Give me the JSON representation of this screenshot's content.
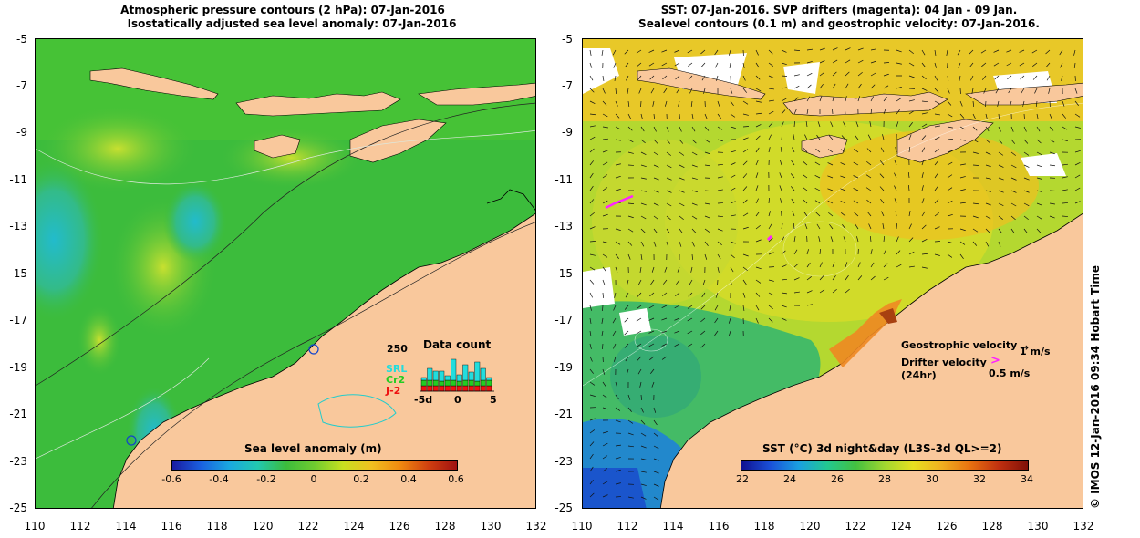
{
  "left_panel": {
    "title_line1": "Atmospheric pressure contours (2 hPa): 07-Jan-2016",
    "title_line2": "Isostatically adjusted sea level anomaly: 07-Jan-2016",
    "y_ticks": [
      "-5",
      "-7",
      "-9",
      "-11",
      "-13",
      "-15",
      "-17",
      "-19",
      "-21",
      "-23",
      "-25"
    ],
    "x_ticks": [
      "110",
      "112",
      "114",
      "116",
      "118",
      "120",
      "122",
      "124",
      "126",
      "128",
      "130",
      "132"
    ],
    "colorbar": {
      "title": "Sea level anomaly (m)",
      "ticks": [
        "-0.6",
        "-0.4",
        "-0.2",
        "0",
        "0.2",
        "0.4",
        "0.6"
      ]
    },
    "inset": {
      "title": "Data count",
      "ymax_label": "250",
      "legend": [
        {
          "label": "SRL",
          "color": "#22dddd"
        },
        {
          "label": "Cr2",
          "color": "#22cc22"
        },
        {
          "label": "J-2",
          "color": "#ee1111"
        }
      ],
      "x_labels": [
        "-5d",
        "0",
        "5"
      ]
    }
  },
  "right_panel": {
    "title_line1": "SST: 07-Jan-2016. SVP drifters (magenta): 04 Jan - 09 Jan.",
    "title_line2": "Sealevel contours (0.1 m) and geostrophic velocity: 07-Jan-2016.",
    "y_ticks": [
      "-5",
      "-7",
      "-9",
      "-11",
      "-13",
      "-15",
      "-17",
      "-19",
      "-21",
      "-23",
      "-25"
    ],
    "x_ticks": [
      "110",
      "112",
      "114",
      "116",
      "118",
      "120",
      "122",
      "124",
      "126",
      "128",
      "130",
      "132"
    ],
    "colorbar": {
      "title": "SST (°C) 3d night&day (L3S-3d QL>=2)",
      "ticks": [
        "22",
        "24",
        "26",
        "28",
        "30",
        "32",
        "34"
      ]
    },
    "legend": {
      "geo_label": "Geostrophic velocity",
      "geo_scale": "1 m/s",
      "drifter_label": "Drifter velocity",
      "drifter_sub": "(24hr)",
      "drifter_scale": "0.5 m/s"
    }
  },
  "copyright": "© IMOS 12-Jan-2016 09:34 Hobart Time",
  "colors": {
    "land": "#f9c89c",
    "sea_anomaly_base": "#3cbc3c",
    "sst_base": "#b4d830",
    "coast": "#000000"
  }
}
